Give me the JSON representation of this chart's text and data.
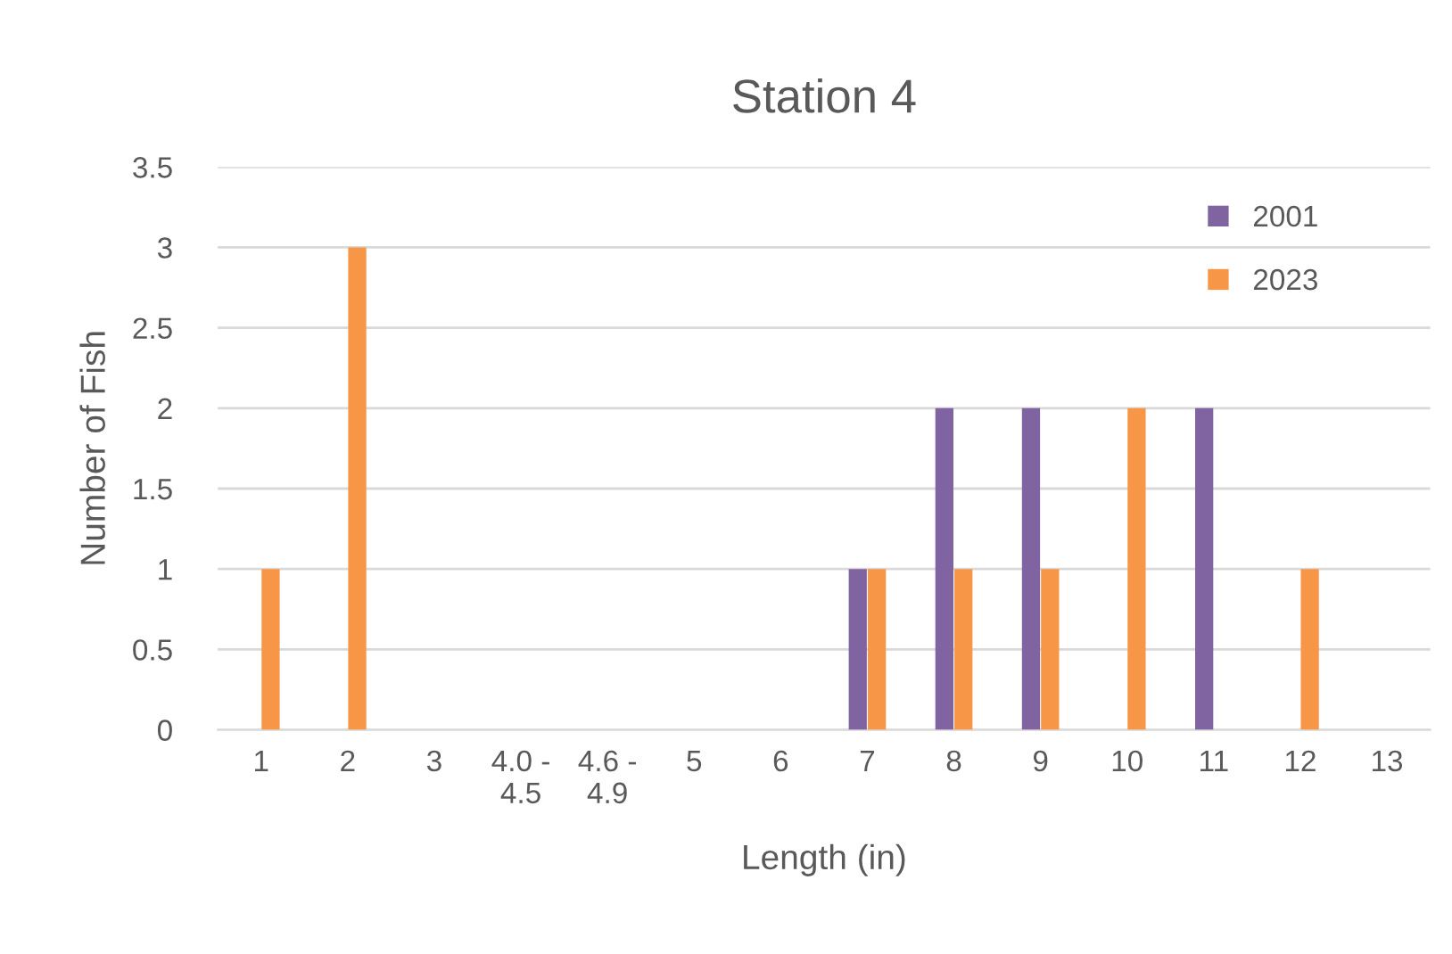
{
  "chart_data": {
    "type": "bar",
    "title": "Station 4",
    "xlabel": "Length (in)",
    "ylabel": "Number of Fish",
    "categories": [
      "1",
      "2",
      "3",
      "4.0 - 4.5",
      "4.6 - 4.9",
      "5",
      "6",
      "7",
      "8",
      "9",
      "10",
      "11",
      "12",
      "13"
    ],
    "series": [
      {
        "name": "2001",
        "color": "#8064a2",
        "values": [
          null,
          null,
          null,
          null,
          null,
          null,
          null,
          1,
          2,
          2,
          null,
          2,
          null,
          null
        ]
      },
      {
        "name": "2023",
        "color": "#f79646",
        "values": [
          1,
          3,
          null,
          null,
          null,
          null,
          null,
          1,
          1,
          1,
          2,
          null,
          1,
          null
        ]
      }
    ],
    "ylim": [
      0,
      3.5
    ],
    "yticks": [
      0,
      0.5,
      1,
      1.5,
      2,
      2.5,
      3,
      3.5
    ],
    "grid": "y",
    "legend": "top right"
  }
}
